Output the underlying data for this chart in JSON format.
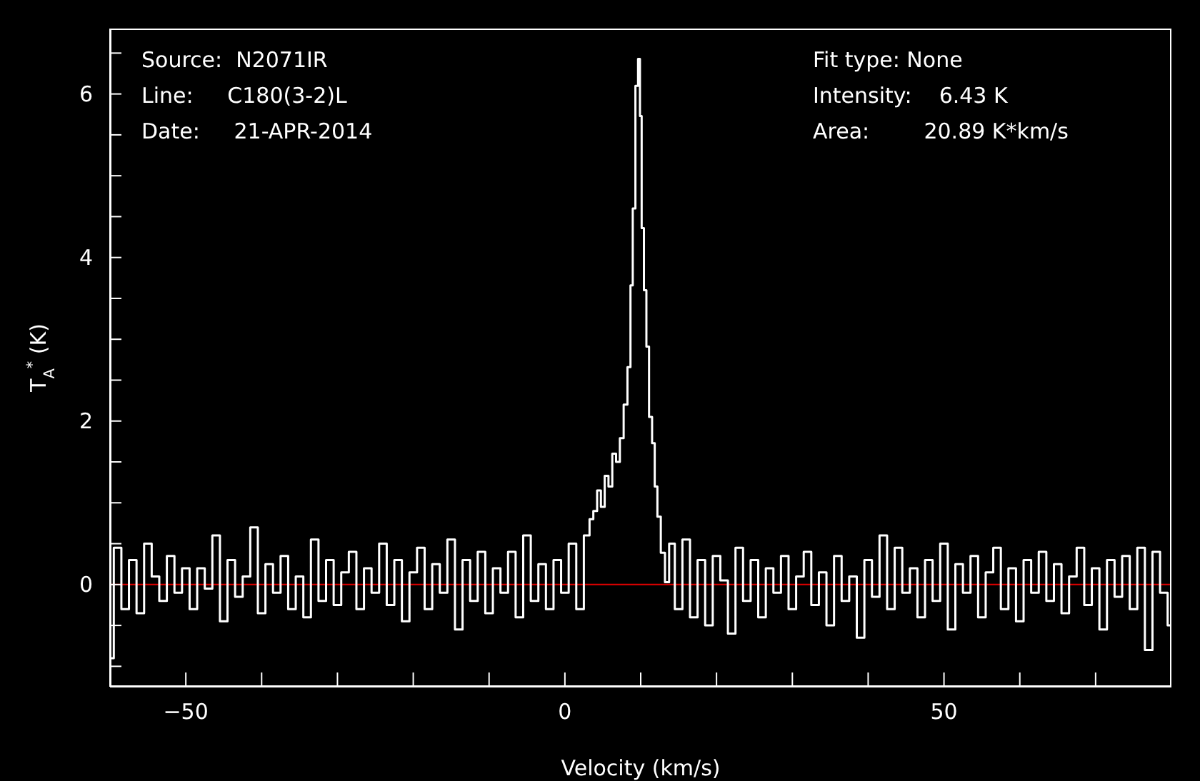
{
  "chart_data": {
    "type": "step",
    "xlabel": "Velocity (km/s)",
    "ylabel": "T$_{A}$$^{*}$ (K)",
    "annotations": [
      "Source:  N2071IR",
      "Line:     C180(3-2)L",
      "Date:     21-APR-2014",
      "Fit type: None",
      "Intensity:    6.43 K",
      "Area:        20.89 K*km/s"
    ],
    "x": [
      -60,
      -59,
      -58,
      -57,
      -56,
      -55,
      -54,
      -53,
      -52,
      -51,
      -50,
      -49,
      -48,
      -47,
      -46,
      -45,
      -44,
      -43,
      -42,
      -41,
      -40,
      -39,
      -38,
      -37,
      -36,
      -35,
      -34,
      -33,
      -32,
      -31,
      -30,
      -29,
      -28,
      -27,
      -26,
      -25,
      -24,
      -23,
      -22,
      -21,
      -20,
      -19,
      -18,
      -17,
      -16,
      -15,
      -14,
      -13,
      -12,
      -11,
      -10,
      -9,
      -8,
      -7,
      -6,
      -5,
      -4,
      -3,
      -2,
      -1,
      0,
      1,
      2,
      3,
      3.5,
      4,
      4.5,
      5,
      5.5,
      6,
      6.5,
      7,
      7.5,
      8,
      8.5,
      8.8,
      9.1,
      9.5,
      9.8,
      10,
      10.25,
      10.6,
      10.9,
      11.3,
      11.7,
      12,
      12.4,
      12.9,
      13.5,
      14,
      15,
      16,
      17,
      18,
      19,
      20,
      21,
      22,
      23,
      24,
      25,
      26,
      27,
      28,
      29,
      30,
      31,
      32,
      33,
      34,
      35,
      36,
      37,
      38,
      39,
      40,
      41,
      42,
      43,
      44,
      45,
      46,
      47,
      48,
      49,
      50,
      51,
      52,
      53,
      54,
      55,
      56,
      57,
      58,
      59,
      60,
      61,
      62,
      63,
      64,
      65,
      66,
      67,
      68,
      69,
      70,
      71,
      72,
      73,
      74,
      75,
      76,
      77,
      78,
      79,
      80
    ],
    "series": [
      {
        "color": "#ffffff",
        "values": [
          -0.9,
          0.45,
          -0.3,
          0.3,
          -0.35,
          0.5,
          0.1,
          -0.2,
          0.35,
          -0.1,
          0.2,
          -0.3,
          0.2,
          -0.05,
          0.6,
          -0.45,
          0.3,
          -0.15,
          0.1,
          0.7,
          -0.35,
          0.25,
          -0.1,
          0.35,
          -0.3,
          0.1,
          -0.4,
          0.55,
          -0.2,
          0.3,
          -0.25,
          0.15,
          0.4,
          -0.3,
          0.2,
          -0.1,
          0.5,
          -0.25,
          0.3,
          -0.45,
          0.15,
          0.45,
          -0.3,
          0.25,
          -0.1,
          0.55,
          -0.55,
          0.3,
          -0.2,
          0.4,
          -0.35,
          0.2,
          -0.1,
          0.4,
          -0.4,
          0.6,
          -0.2,
          0.25,
          -0.3,
          0.3,
          -0.1,
          0.5,
          -0.3,
          0.6,
          0.8,
          0.9,
          1.15,
          0.95,
          1.33,
          1.2,
          1.6,
          1.5,
          1.79,
          2.2,
          2.66,
          3.66,
          4.6,
          6.1,
          6.43,
          5.73,
          4.36,
          3.6,
          2.91,
          2.05,
          1.73,
          1.2,
          0.83,
          0.39,
          0.03,
          0.5,
          -0.3,
          0.55,
          -0.4,
          0.3,
          -0.5,
          0.35,
          0.05,
          -0.6,
          0.45,
          -0.2,
          0.3,
          -0.4,
          0.2,
          -0.1,
          0.35,
          -0.3,
          0.1,
          0.4,
          -0.25,
          0.15,
          -0.5,
          0.35,
          -0.2,
          0.1,
          -0.65,
          0.3,
          -0.15,
          0.6,
          -0.3,
          0.45,
          -0.1,
          0.2,
          -0.4,
          0.3,
          -0.2,
          0.5,
          -0.55,
          0.25,
          -0.1,
          0.35,
          -0.4,
          0.15,
          0.45,
          -0.3,
          0.2,
          -0.45,
          0.3,
          -0.1,
          0.4,
          -0.2,
          0.25,
          -0.35,
          0.1,
          0.45,
          -0.25,
          0.2,
          -0.55,
          0.3,
          -0.15,
          0.35,
          -0.3,
          0.45,
          -0.8,
          0.4,
          -0.1,
          -0.5
        ]
      }
    ],
    "xlim": [
      -60,
      80
    ],
    "xticks": [
      {
        "value": -50,
        "label": "−50"
      },
      {
        "value": -40,
        "label": null
      },
      {
        "value": -30,
        "label": null
      },
      {
        "value": -20,
        "label": null
      },
      {
        "value": -10,
        "label": null
      },
      0,
      {
        "value": 10,
        "label": null
      },
      {
        "value": 20,
        "label": null
      },
      {
        "value": 30,
        "label": null
      },
      {
        "value": 40,
        "label": null
      },
      50,
      {
        "value": 60,
        "label": null
      },
      {
        "value": 70,
        "label": null
      }
    ],
    "ylim": [
      -1.25,
      6.8
    ],
    "yticks": [
      {
        "value": -1,
        "label": null
      },
      {
        "value": -0.5,
        "label": null
      },
      0,
      {
        "value": 0.5,
        "label": null
      },
      {
        "value": 1,
        "label": null
      },
      {
        "value": 1.5,
        "label": null
      },
      2,
      {
        "value": 2.5,
        "label": null
      },
      {
        "value": 3,
        "label": null
      },
      {
        "value": 3.5,
        "label": null
      },
      4,
      {
        "value": 4.5,
        "label": null
      },
      {
        "value": 5,
        "label": null
      },
      {
        "value": 5.5,
        "label": null
      },
      6,
      {
        "value": 6.5,
        "label": null
      }
    ],
    "ref_lines": [
      {
        "axis": "y",
        "value": 0,
        "color": "#e00000"
      }
    ],
    "grid": false,
    "legend": false
  }
}
